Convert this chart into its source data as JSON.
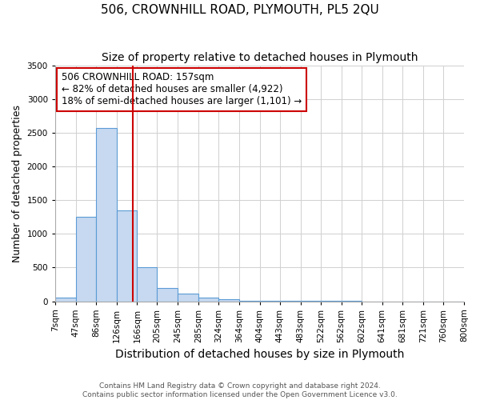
{
  "title": "506, CROWNHILL ROAD, PLYMOUTH, PL5 2QU",
  "subtitle": "Size of property relative to detached houses in Plymouth",
  "xlabel": "Distribution of detached houses by size in Plymouth",
  "ylabel": "Number of detached properties",
  "bin_edges": [
    7,
    47,
    86,
    126,
    166,
    205,
    245,
    285,
    324,
    364,
    404,
    443,
    483,
    522,
    562,
    602,
    641,
    681,
    721,
    760,
    800
  ],
  "bar_heights": [
    50,
    1250,
    2575,
    1350,
    500,
    200,
    110,
    50,
    30,
    10,
    5,
    3,
    2,
    1,
    1,
    0,
    0,
    0,
    0,
    0
  ],
  "bar_facecolor": "#c6d9f0",
  "bar_edgecolor": "#5b9bd5",
  "vline_x": 157,
  "vline_color": "#cc0000",
  "annotation_line1": "506 CROWNHILL ROAD: 157sqm",
  "annotation_line2": "← 82% of detached houses are smaller (4,922)",
  "annotation_line3": "18% of semi-detached houses are larger (1,101) →",
  "annotation_box_edgecolor": "#cc0000",
  "annotation_box_facecolor": "#ffffff",
  "ylim": [
    0,
    3500
  ],
  "yticks": [
    0,
    500,
    1000,
    1500,
    2000,
    2500,
    3000,
    3500
  ],
  "tick_labels": [
    "7sqm",
    "47sqm",
    "86sqm",
    "126sqm",
    "166sqm",
    "205sqm",
    "245sqm",
    "285sqm",
    "324sqm",
    "364sqm",
    "404sqm",
    "443sqm",
    "483sqm",
    "522sqm",
    "562sqm",
    "602sqm",
    "641sqm",
    "681sqm",
    "721sqm",
    "760sqm",
    "800sqm"
  ],
  "footer_text": "Contains HM Land Registry data © Crown copyright and database right 2024.\nContains public sector information licensed under the Open Government Licence v3.0.",
  "title_fontsize": 11,
  "subtitle_fontsize": 10,
  "xlabel_fontsize": 10,
  "ylabel_fontsize": 9,
  "tick_fontsize": 7.5,
  "annotation_fontsize": 8.5,
  "footer_fontsize": 6.5,
  "grid_color": "#d0d0d0",
  "background_color": "#ffffff"
}
